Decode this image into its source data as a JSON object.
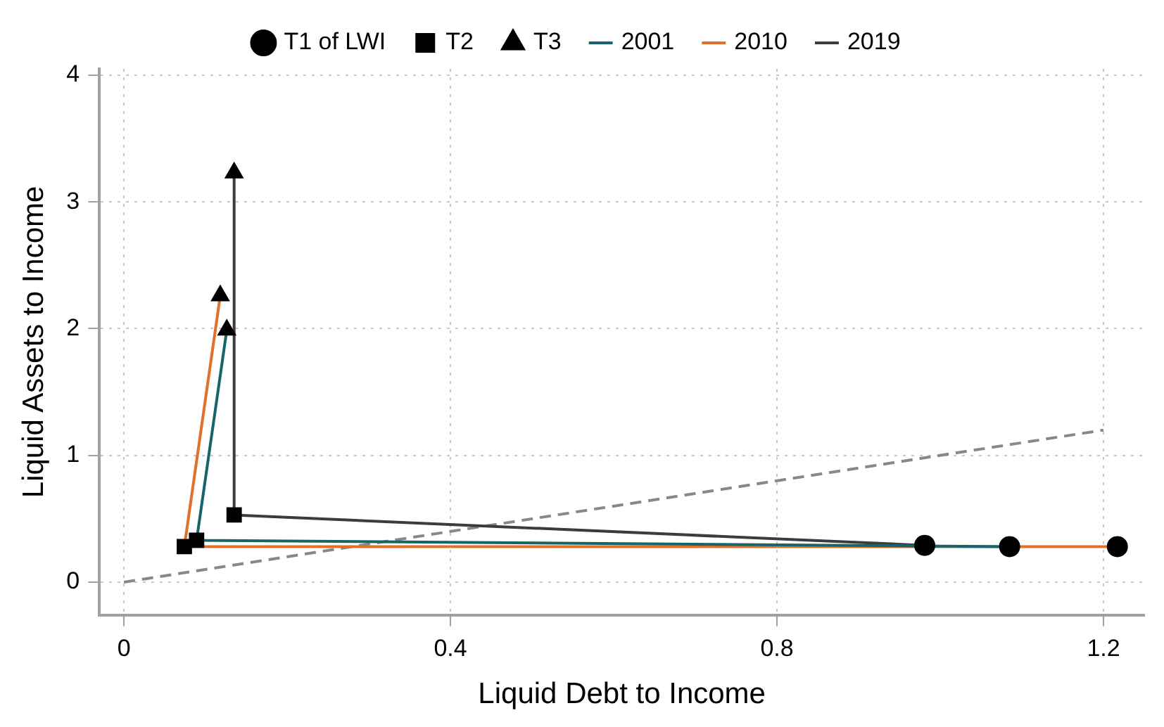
{
  "chart_data": {
    "type": "line",
    "xlabel": "Liquid Debt to Income",
    "ylabel": "Liquid Assets to Income",
    "xlim": [
      -0.03,
      1.25
    ],
    "ylim": [
      -0.26,
      4.05
    ],
    "xticks": [
      0,
      0.4,
      0.8,
      1.2
    ],
    "yticks": [
      0,
      1,
      2,
      3,
      4
    ],
    "grid": true,
    "legend": "top",
    "series": [
      {
        "name": "T1 of LWI",
        "type": "scatter",
        "marker": "circle",
        "color": "#000000",
        "x": [
          0.981,
          1.217,
          1.085
        ],
        "values": [
          0.29,
          0.28,
          0.28
        ]
      },
      {
        "name": "T2",
        "type": "scatter",
        "marker": "square",
        "color": "#000000",
        "x": [
          0.089,
          0.074,
          0.135
        ],
        "values": [
          0.33,
          0.28,
          0.53
        ]
      },
      {
        "name": "T3",
        "type": "scatter",
        "marker": "triangle",
        "color": "#000000",
        "x": [
          0.126,
          0.118,
          0.135
        ],
        "values": [
          1.99,
          2.26,
          3.23
        ]
      },
      {
        "name": "2001",
        "type": "line",
        "color": "#17656b",
        "x": [
          1.085,
          0.089,
          0.126
        ],
        "values": [
          0.28,
          0.33,
          1.99
        ]
      },
      {
        "name": "2010",
        "type": "line",
        "color": "#e0702a",
        "x": [
          1.217,
          0.074,
          0.118
        ],
        "values": [
          0.28,
          0.28,
          2.26
        ]
      },
      {
        "name": "2019",
        "type": "line",
        "color": "#3c3c3c",
        "x": [
          0.981,
          0.135,
          0.135
        ],
        "values": [
          0.29,
          0.53,
          3.23
        ]
      },
      {
        "color": "#888888",
        "line_style": "dashed",
        "x": [
          0,
          1.2
        ],
        "values": [
          0,
          1.2
        ]
      }
    ]
  }
}
